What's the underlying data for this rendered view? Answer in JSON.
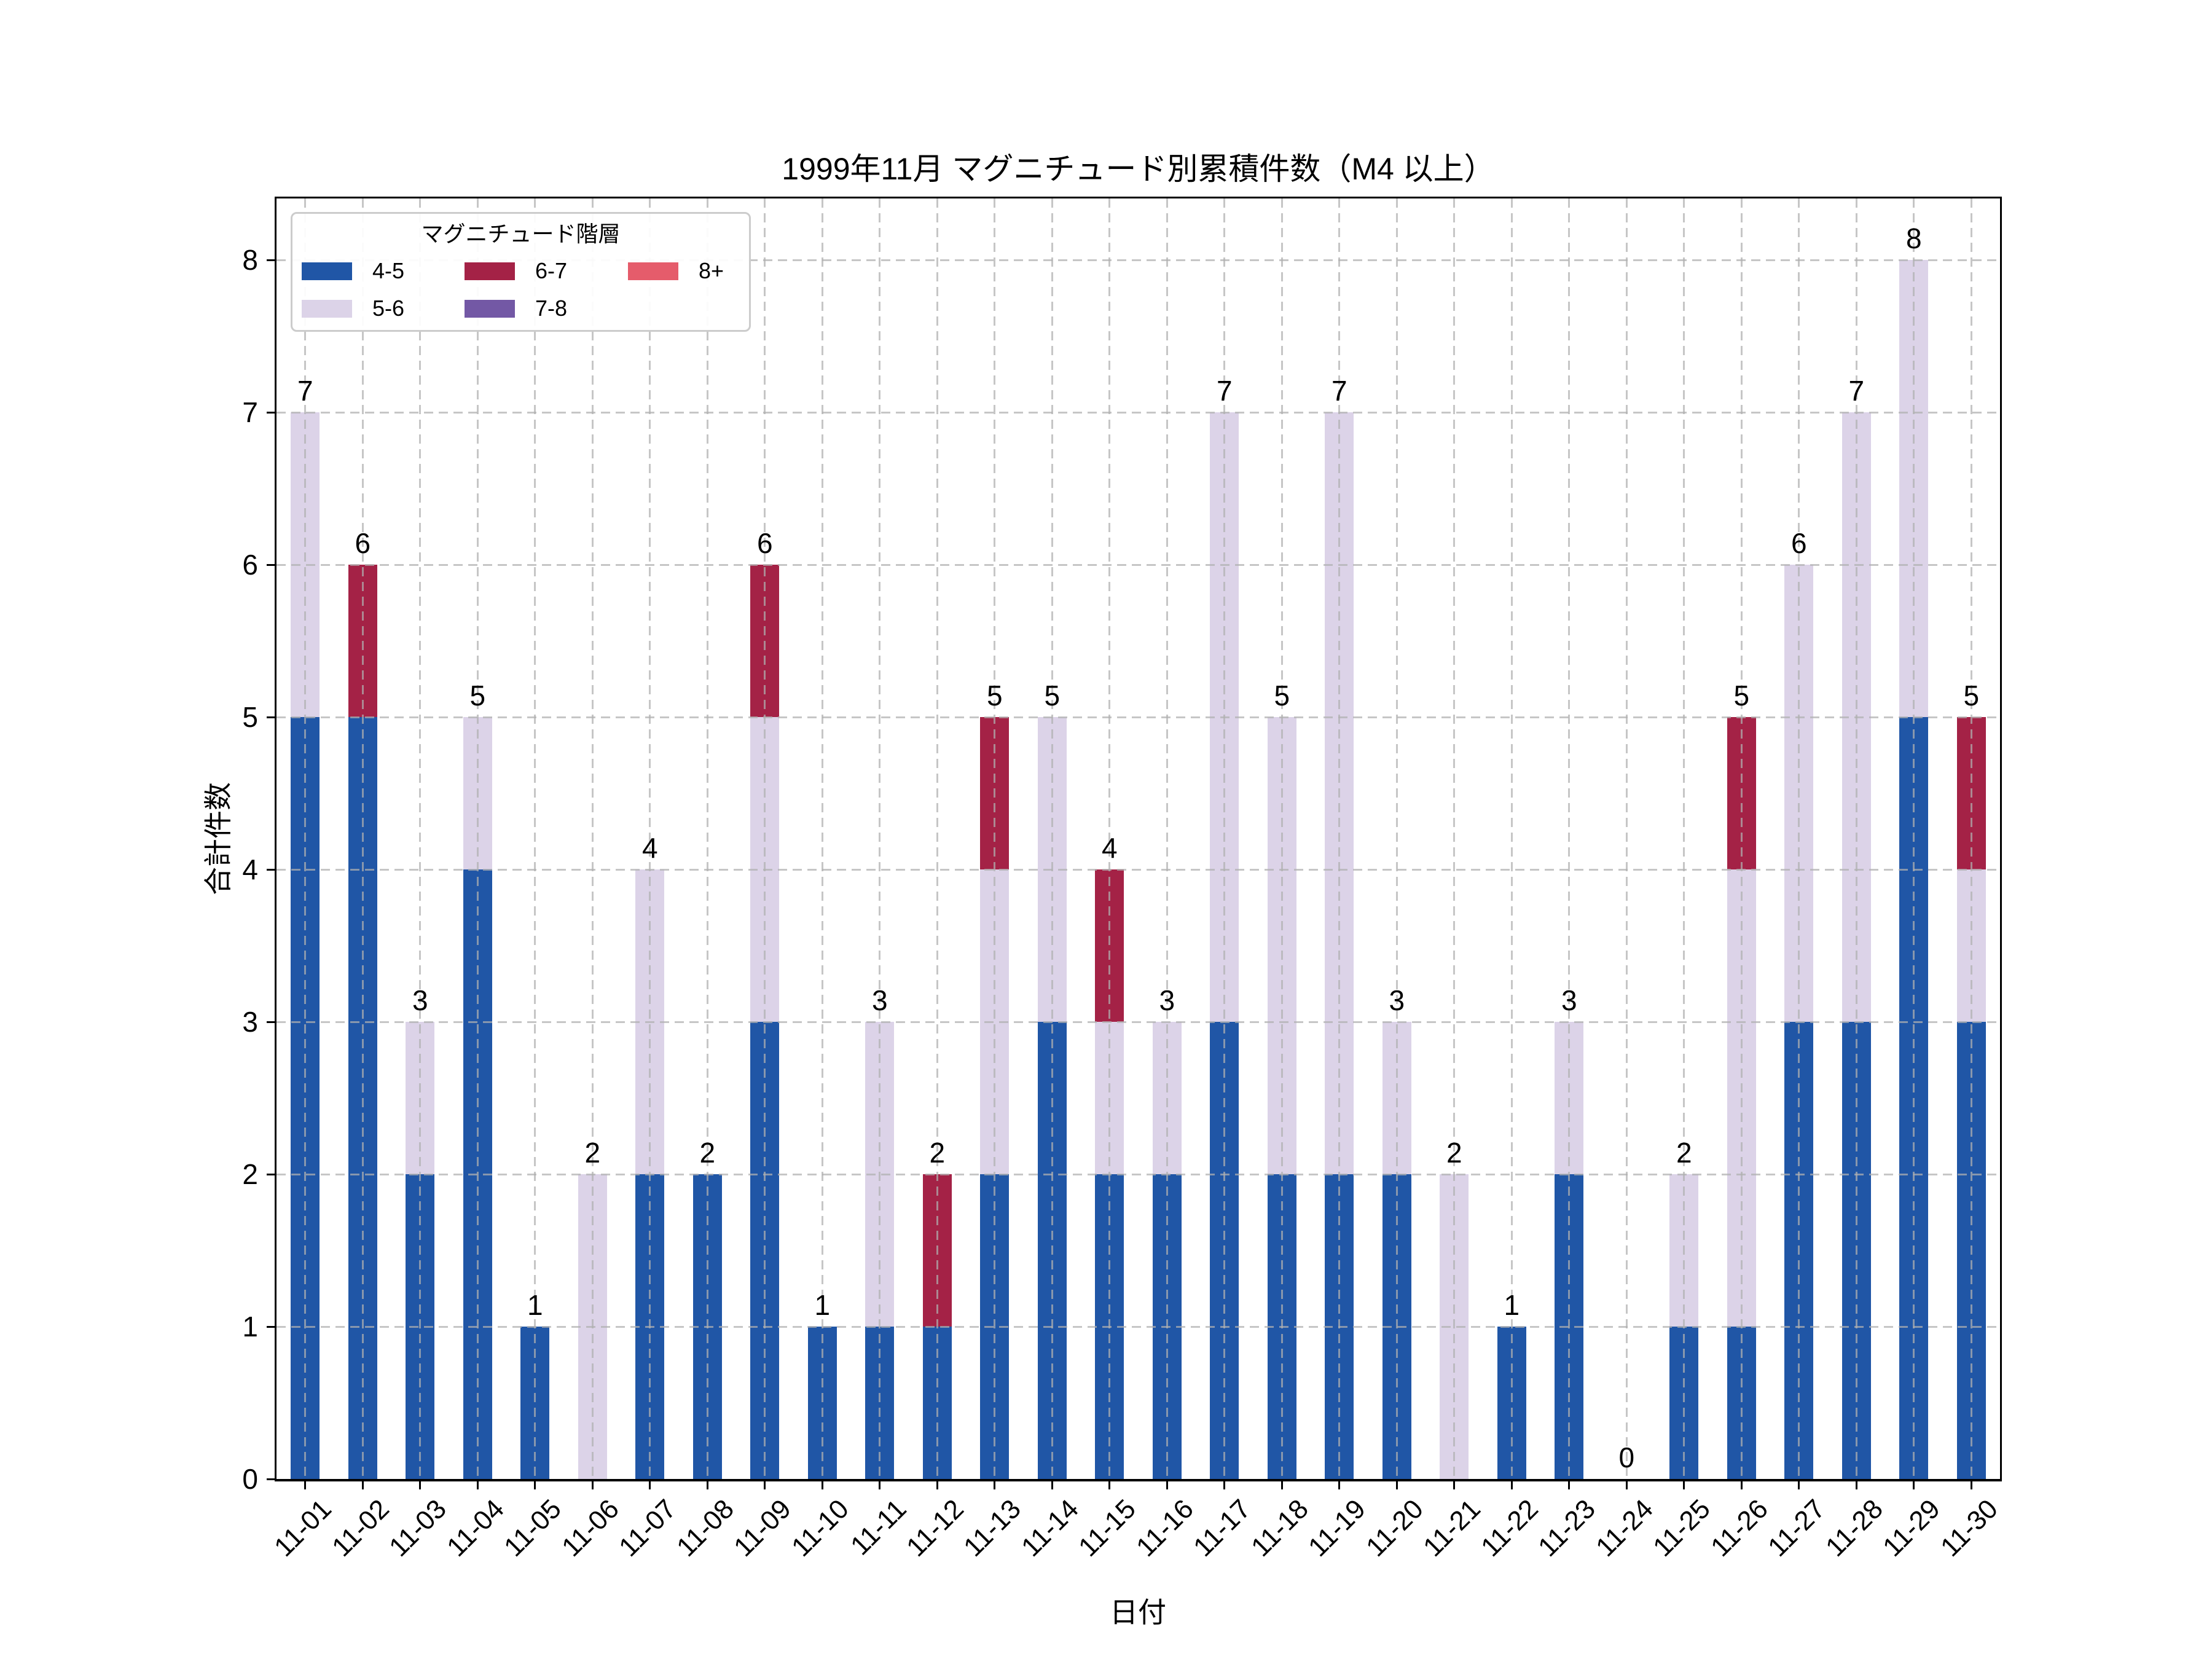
{
  "title": "1999年11月 マグニチュード別累積件数（M4 以上）",
  "xlabel": "日付",
  "ylabel": "合計件数",
  "legend": {
    "title": "マグニチュード階層",
    "entries": [
      {
        "label": "4-5",
        "color": "#2056A6"
      },
      {
        "label": "5-6",
        "color": "#DCD3E8"
      },
      {
        "label": "6-7",
        "color": "#A42246"
      },
      {
        "label": "7-8",
        "color": "#7358A5"
      },
      {
        "label": "8+",
        "color": "#E55C6B"
      }
    ]
  },
  "colors": {
    "grid": "rgba(176,176,176,0.72)",
    "spine": "#000000",
    "background": "#ffffff",
    "legend_border": "#cccccc"
  },
  "chart_data": {
    "type": "bar",
    "stacked": true,
    "title": "1999年11月 マグニチュード別累積件数（M4 以上）",
    "xlabel": "日付",
    "ylabel": "合計件数",
    "grid": "dashed",
    "legend_position": "upper left",
    "ylim": [
      0,
      8.4
    ],
    "yticks": [
      0,
      1,
      2,
      3,
      4,
      5,
      6,
      7,
      8
    ],
    "categories": [
      "11-01",
      "11-02",
      "11-03",
      "11-04",
      "11-05",
      "11-06",
      "11-07",
      "11-08",
      "11-09",
      "11-10",
      "11-11",
      "11-12",
      "11-13",
      "11-14",
      "11-15",
      "11-16",
      "11-17",
      "11-18",
      "11-19",
      "11-20",
      "11-21",
      "11-22",
      "11-23",
      "11-24",
      "11-25",
      "11-26",
      "11-27",
      "11-28",
      "11-29",
      "11-30"
    ],
    "series": [
      {
        "name": "4-5",
        "color": "#2056A6",
        "values": [
          5,
          5,
          2,
          4,
          1,
          0,
          2,
          2,
          3,
          1,
          1,
          1,
          2,
          3,
          2,
          2,
          3,
          2,
          2,
          2,
          0,
          1,
          2,
          0,
          1,
          1,
          3,
          3,
          5,
          3
        ]
      },
      {
        "name": "5-6",
        "color": "#DCD3E8",
        "values": [
          2,
          0,
          1,
          1,
          0,
          2,
          2,
          0,
          2,
          0,
          2,
          0,
          2,
          2,
          1,
          1,
          4,
          3,
          5,
          1,
          2,
          0,
          1,
          0,
          1,
          3,
          3,
          4,
          3,
          1
        ]
      },
      {
        "name": "6-7",
        "color": "#A42246",
        "values": [
          0,
          1,
          0,
          0,
          0,
          0,
          0,
          0,
          1,
          0,
          0,
          1,
          1,
          0,
          1,
          0,
          0,
          0,
          0,
          0,
          0,
          0,
          0,
          0,
          0,
          1,
          0,
          0,
          0,
          1
        ]
      },
      {
        "name": "7-8",
        "color": "#7358A5",
        "values": [
          0,
          0,
          0,
          0,
          0,
          0,
          0,
          0,
          0,
          0,
          0,
          0,
          0,
          0,
          0,
          0,
          0,
          0,
          0,
          0,
          0,
          0,
          0,
          0,
          0,
          0,
          0,
          0,
          0,
          0
        ]
      },
      {
        "name": "8+",
        "color": "#E55C6B",
        "values": [
          0,
          0,
          0,
          0,
          0,
          0,
          0,
          0,
          0,
          0,
          0,
          0,
          0,
          0,
          0,
          0,
          0,
          0,
          0,
          0,
          0,
          0,
          0,
          0,
          0,
          0,
          0,
          0,
          0,
          0
        ]
      }
    ],
    "totals": [
      7,
      6,
      3,
      5,
      1,
      2,
      4,
      2,
      6,
      1,
      3,
      2,
      5,
      5,
      4,
      3,
      7,
      5,
      7,
      3,
      2,
      1,
      3,
      0,
      2,
      5,
      6,
      7,
      8,
      5
    ]
  }
}
